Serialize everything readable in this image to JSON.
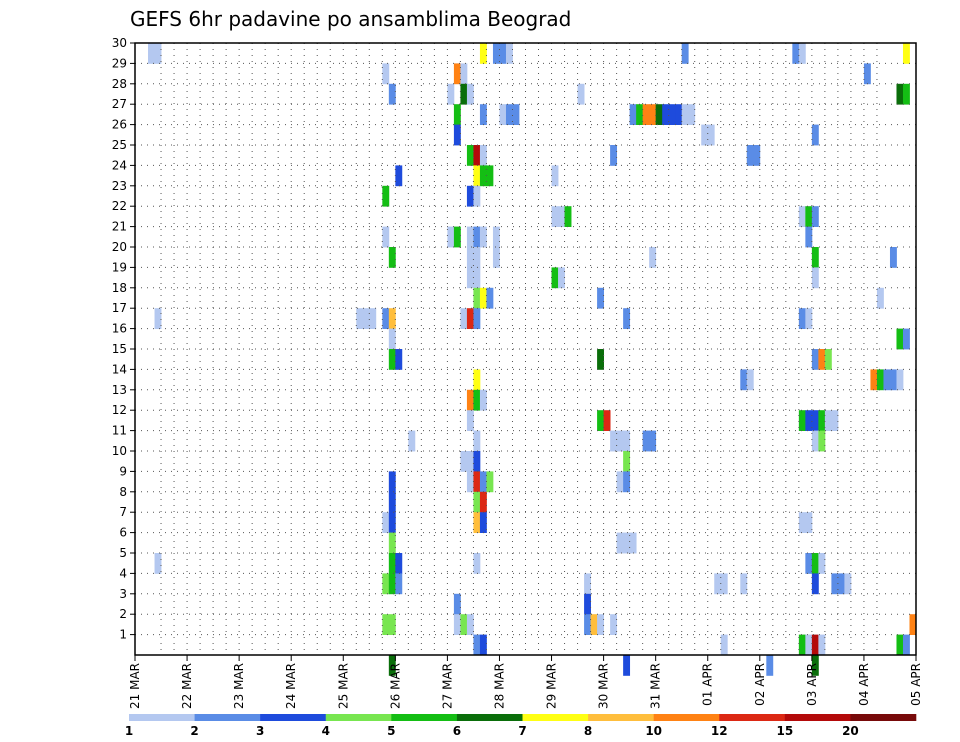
{
  "chart_data": {
    "type": "heatmap",
    "title": "GEFS 6hr padavine po ansamblima Beograd",
    "x_labels": [
      "21 MAR",
      "22 MAR",
      "23 MAR",
      "24 MAR",
      "25 MAR",
      "26 MAR",
      "27 MAR",
      "28 MAR",
      "29 MAR",
      "30 MAR",
      "31 MAR",
      "01 APR",
      "02 APR",
      "03 APR",
      "04 APR",
      "05 APR"
    ],
    "y_labels": [
      "1",
      "2",
      "3",
      "4",
      "5",
      "6",
      "7",
      "8",
      "9",
      "10",
      "11",
      "12",
      "13",
      "14",
      "15",
      "16",
      "17",
      "18",
      "19",
      "20",
      "21",
      "22",
      "23",
      "24",
      "25",
      "26",
      "27",
      "28",
      "29",
      "30"
    ],
    "grid": "dotted",
    "legend": {
      "position": "bottom",
      "levels": [
        "1",
        "2",
        "3",
        "4",
        "5",
        "6",
        "7",
        "8",
        "10",
        "12",
        "15",
        "20"
      ],
      "colors": [
        "#b4c8f0",
        "#5a8ce6",
        "#1e4bdc",
        "#78e650",
        "#14be14",
        "#0a6e0a",
        "#ffff14",
        "#ffbe3c",
        "#ff8214",
        "#dc2814",
        "#b40a0a",
        "#780a0a"
      ]
    },
    "cells": [
      {
        "m": 30,
        "s": [
          [
            2,
            1
          ],
          [
            3,
            1
          ],
          [
            53,
            7
          ],
          [
            55,
            2
          ],
          [
            56,
            2
          ],
          [
            57,
            1
          ],
          [
            84,
            2
          ],
          [
            101,
            2
          ],
          [
            102,
            1
          ],
          [
            118,
            7
          ]
        ]
      },
      {
        "m": 29,
        "s": [
          [
            38,
            1
          ],
          [
            49,
            9
          ],
          [
            50,
            1
          ],
          [
            112,
            2
          ]
        ]
      },
      {
        "m": 28,
        "s": [
          [
            39,
            2
          ],
          [
            48,
            1
          ],
          [
            50,
            6
          ],
          [
            51,
            1
          ],
          [
            68,
            1
          ],
          [
            117,
            6
          ],
          [
            118,
            5
          ]
        ]
      },
      {
        "m": 27,
        "s": [
          [
            49,
            5
          ],
          [
            53,
            2
          ],
          [
            56,
            1
          ],
          [
            57,
            2
          ],
          [
            58,
            2
          ],
          [
            76,
            2
          ],
          [
            77,
            5
          ],
          [
            78,
            9
          ],
          [
            79,
            9
          ],
          [
            80,
            6
          ],
          [
            81,
            3
          ],
          [
            82,
            3
          ],
          [
            83,
            3
          ],
          [
            84,
            1
          ],
          [
            85,
            1
          ]
        ]
      },
      {
        "m": 26,
        "s": [
          [
            49,
            3
          ],
          [
            87,
            1
          ],
          [
            88,
            1
          ],
          [
            104,
            2
          ]
        ]
      },
      {
        "m": 25,
        "s": [
          [
            51,
            5
          ],
          [
            52,
            11
          ],
          [
            53,
            1
          ],
          [
            73,
            2
          ],
          [
            94,
            2
          ],
          [
            95,
            2
          ]
        ]
      },
      {
        "m": 24,
        "s": [
          [
            40,
            3
          ],
          [
            52,
            7
          ],
          [
            53,
            5
          ],
          [
            54,
            5
          ],
          [
            64,
            1
          ]
        ]
      },
      {
        "m": 23,
        "s": [
          [
            38,
            5
          ],
          [
            51,
            3
          ],
          [
            52,
            1
          ]
        ]
      },
      {
        "m": 22,
        "s": [
          [
            64,
            1
          ],
          [
            65,
            1
          ],
          [
            66,
            5
          ],
          [
            102,
            1
          ],
          [
            103,
            5
          ],
          [
            104,
            2
          ]
        ]
      },
      {
        "m": 21,
        "s": [
          [
            38,
            1
          ],
          [
            48,
            1
          ],
          [
            49,
            5
          ],
          [
            51,
            1
          ],
          [
            52,
            2
          ],
          [
            53,
            1
          ],
          [
            55,
            1
          ],
          [
            103,
            2
          ]
        ]
      },
      {
        "m": 20,
        "s": [
          [
            39,
            5
          ],
          [
            51,
            1
          ],
          [
            52,
            1
          ],
          [
            55,
            1
          ],
          [
            79,
            1
          ],
          [
            104,
            5
          ],
          [
            116,
            2
          ]
        ]
      },
      {
        "m": 19,
        "s": [
          [
            51,
            1
          ],
          [
            52,
            1
          ],
          [
            64,
            5
          ],
          [
            65,
            1
          ],
          [
            104,
            1
          ]
        ]
      },
      {
        "m": 18,
        "s": [
          [
            52,
            4
          ],
          [
            53,
            7
          ],
          [
            54,
            2
          ],
          [
            71,
            2
          ],
          [
            114,
            1
          ]
        ]
      },
      {
        "m": 17,
        "s": [
          [
            3,
            1
          ],
          [
            34,
            1
          ],
          [
            35,
            1
          ],
          [
            36,
            1
          ],
          [
            38,
            2
          ],
          [
            39,
            8
          ],
          [
            50,
            1
          ],
          [
            51,
            10
          ],
          [
            52,
            2
          ],
          [
            75,
            2
          ],
          [
            102,
            2
          ],
          [
            103,
            1
          ]
        ]
      },
      {
        "m": 16,
        "s": [
          [
            39,
            1
          ],
          [
            117,
            5
          ],
          [
            118,
            2
          ]
        ]
      },
      {
        "m": 15,
        "s": [
          [
            39,
            5
          ],
          [
            40,
            3
          ],
          [
            71,
            6
          ],
          [
            104,
            2
          ],
          [
            105,
            9
          ],
          [
            106,
            4
          ]
        ]
      },
      {
        "m": 14,
        "s": [
          [
            52,
            7
          ],
          [
            93,
            2
          ],
          [
            94,
            1
          ],
          [
            113,
            9
          ],
          [
            114,
            5
          ],
          [
            115,
            2
          ],
          [
            116,
            2
          ],
          [
            117,
            1
          ]
        ]
      },
      {
        "m": 13,
        "s": [
          [
            51,
            9
          ],
          [
            52,
            5
          ],
          [
            53,
            1
          ]
        ]
      },
      {
        "m": 12,
        "s": [
          [
            51,
            1
          ],
          [
            71,
            5
          ],
          [
            72,
            10
          ],
          [
            102,
            5
          ],
          [
            103,
            3
          ],
          [
            104,
            3
          ],
          [
            105,
            5
          ],
          [
            106,
            1
          ],
          [
            107,
            1
          ]
        ]
      },
      {
        "m": 11,
        "s": [
          [
            42,
            1
          ],
          [
            52,
            1
          ],
          [
            73,
            1
          ],
          [
            74,
            1
          ],
          [
            75,
            1
          ],
          [
            78,
            2
          ],
          [
            79,
            2
          ],
          [
            104,
            1
          ],
          [
            105,
            4
          ]
        ]
      },
      {
        "m": 10,
        "s": [
          [
            50,
            1
          ],
          [
            51,
            1
          ],
          [
            52,
            3
          ],
          [
            75,
            4
          ]
        ]
      },
      {
        "m": 9,
        "s": [
          [
            39,
            3
          ],
          [
            51,
            1
          ],
          [
            52,
            10
          ],
          [
            53,
            2
          ],
          [
            54,
            4
          ],
          [
            74,
            1
          ],
          [
            75,
            2
          ]
        ]
      },
      {
        "m": 8,
        "s": [
          [
            39,
            3
          ],
          [
            52,
            4
          ],
          [
            53,
            10
          ]
        ]
      },
      {
        "m": 7,
        "s": [
          [
            38,
            1
          ],
          [
            39,
            3
          ],
          [
            52,
            8
          ],
          [
            53,
            3
          ],
          [
            102,
            1
          ],
          [
            103,
            1
          ]
        ]
      },
      {
        "m": 6,
        "s": [
          [
            39,
            4
          ],
          [
            74,
            1
          ],
          [
            75,
            1
          ],
          [
            76,
            1
          ]
        ]
      },
      {
        "m": 5,
        "s": [
          [
            3,
            1
          ],
          [
            39,
            5
          ],
          [
            40,
            3
          ],
          [
            52,
            1
          ],
          [
            103,
            2
          ],
          [
            104,
            5
          ],
          [
            105,
            1
          ]
        ]
      },
      {
        "m": 4,
        "s": [
          [
            38,
            4
          ],
          [
            39,
            5
          ],
          [
            40,
            2
          ],
          [
            69,
            1
          ],
          [
            89,
            1
          ],
          [
            90,
            1
          ],
          [
            93,
            1
          ],
          [
            104,
            3
          ],
          [
            107,
            2
          ],
          [
            108,
            2
          ],
          [
            109,
            1
          ]
        ]
      },
      {
        "m": 3,
        "s": [
          [
            49,
            2
          ],
          [
            69,
            3
          ]
        ]
      },
      {
        "m": 2,
        "s": [
          [
            38,
            4
          ],
          [
            39,
            4
          ],
          [
            49,
            1
          ],
          [
            50,
            4
          ],
          [
            51,
            1
          ],
          [
            69,
            2
          ],
          [
            70,
            8
          ],
          [
            71,
            1
          ],
          [
            73,
            1
          ],
          [
            119,
            9
          ]
        ]
      },
      {
        "m": 1,
        "s": [
          [
            52,
            2
          ],
          [
            53,
            3
          ],
          [
            90,
            1
          ],
          [
            102,
            5
          ],
          [
            103,
            1
          ],
          [
            104,
            11
          ],
          [
            105,
            1
          ],
          [
            117,
            5
          ],
          [
            118,
            2
          ]
        ]
      },
      {
        "m": 0,
        "s": [
          [
            39,
            6
          ],
          [
            75,
            3
          ],
          [
            97,
            2
          ],
          [
            104,
            6
          ]
        ]
      }
    ]
  }
}
